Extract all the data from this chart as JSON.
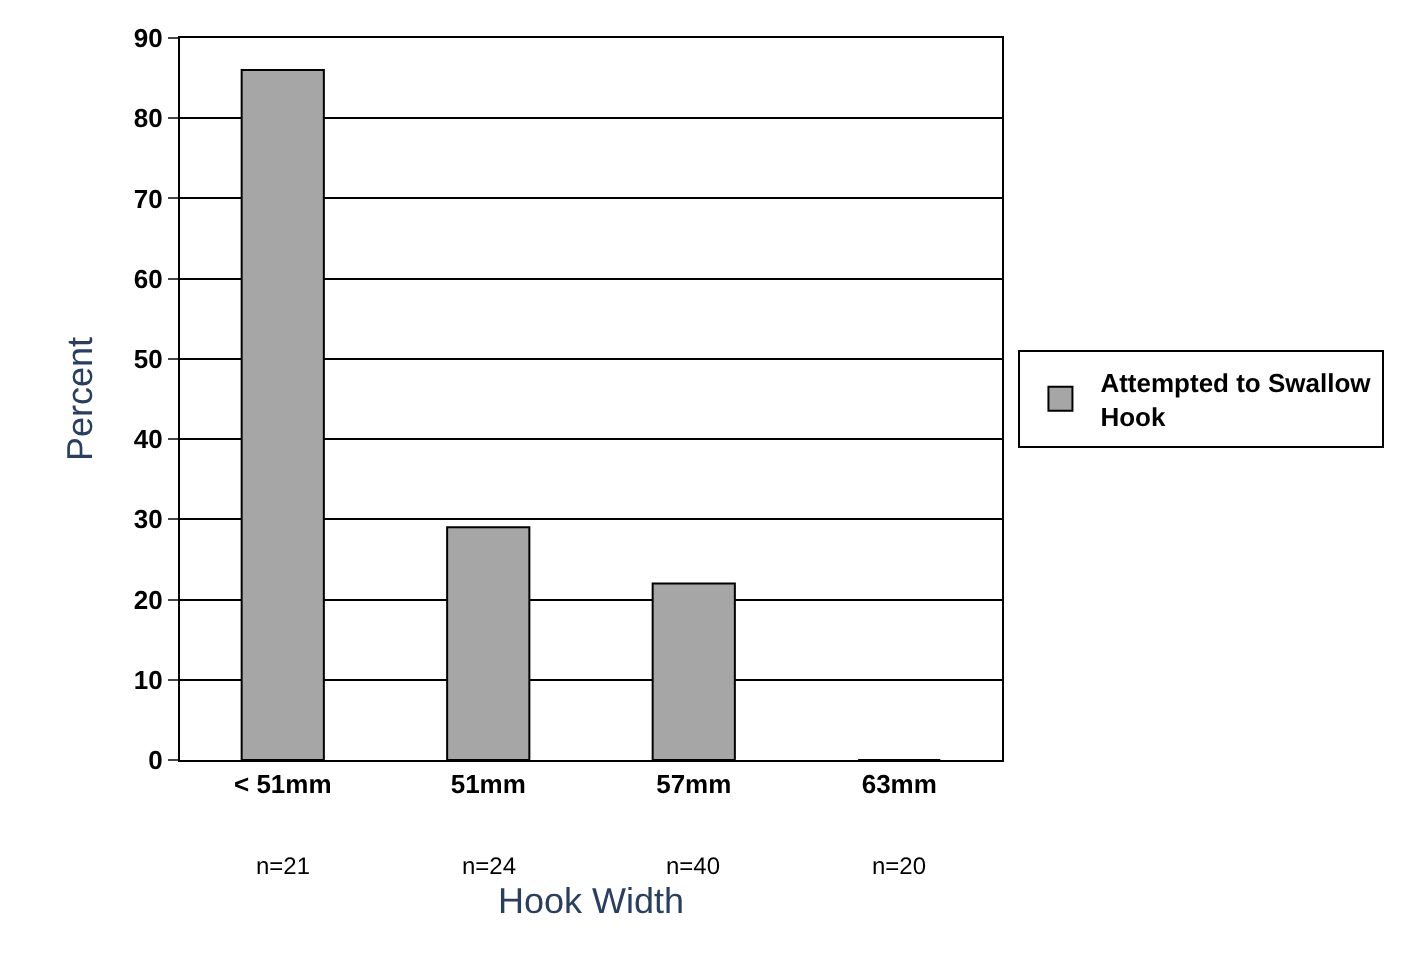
{
  "chart_data": {
    "type": "bar",
    "xlabel": "Hook Width",
    "ylabel": "Percent",
    "categories": [
      "< 51mm",
      "51mm",
      "57mm",
      "63mm"
    ],
    "series": [
      {
        "name": "Attempted to Swallow Hook",
        "color": "#a6a6a6",
        "values": [
          86,
          29,
          22,
          0
        ]
      }
    ],
    "ylim": [
      0,
      90
    ],
    "yticks": [
      0,
      10,
      20,
      30,
      40,
      50,
      60,
      70,
      80,
      90
    ],
    "grid": "y",
    "legend": "right",
    "annotations": [
      "n=21",
      "n=24",
      "n=40",
      "n=20"
    ]
  }
}
